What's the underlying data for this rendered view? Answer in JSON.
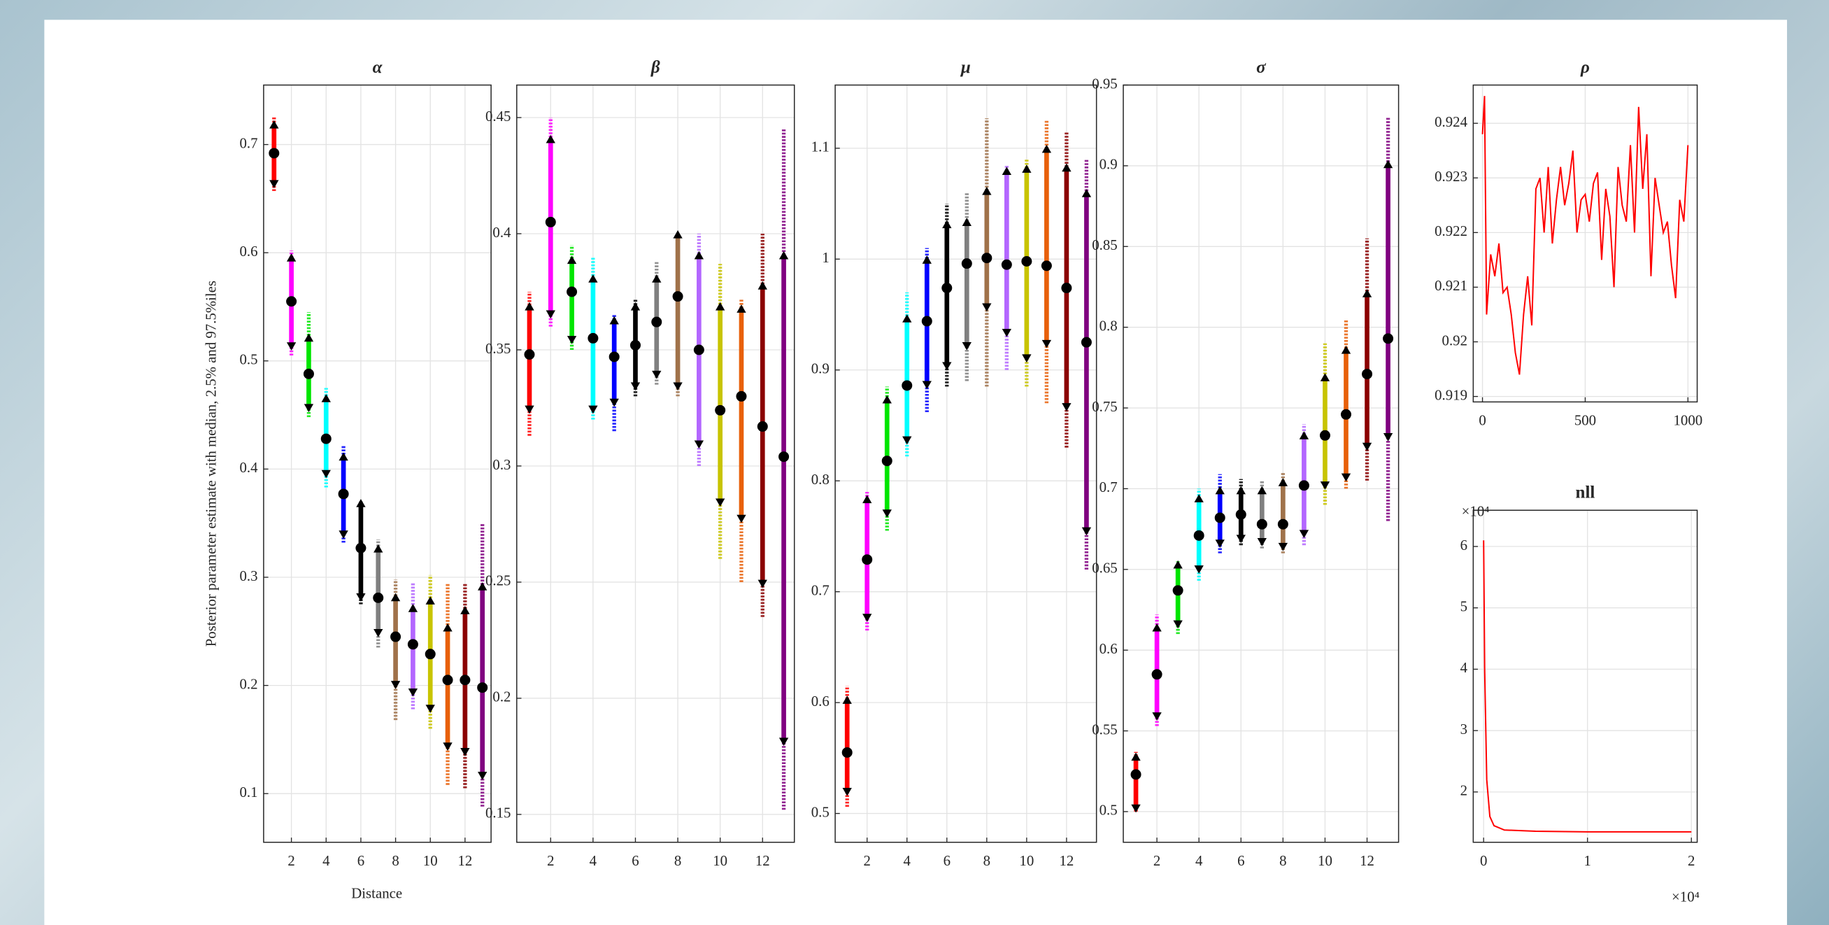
{
  "chart_data": [
    {
      "type": "interval",
      "title": "α",
      "ylabel": "Posterior parameter estimate with median, 2.5% and 97.5%iles",
      "xlabel": "Distance",
      "x": [
        1,
        2,
        3,
        4,
        5,
        6,
        7,
        8,
        9,
        10,
        11,
        12,
        13
      ],
      "xlim": [
        0.4,
        13.5
      ],
      "xticks": [
        2,
        4,
        6,
        8,
        10,
        12
      ],
      "ylim": [
        0.055,
        0.755
      ],
      "yticks": [
        0.1,
        0.2,
        0.3,
        0.4,
        0.5,
        0.6,
        0.7
      ],
      "grid": true,
      "colors": [
        "#ff0000",
        "#ff00ff",
        "#00e600",
        "#00ffff",
        "#0000ff",
        "#000000",
        "#808080",
        "#a0724a",
        "#b366ff",
        "#c8c400",
        "#e8600a",
        "#8b0000",
        "#800080"
      ],
      "median": [
        0.692,
        0.555,
        0.488,
        0.428,
        0.377,
        0.327,
        0.281,
        0.245,
        0.238,
        0.229,
        0.205,
        0.205,
        0.198
      ],
      "lower": [
        0.665,
        0.515,
        0.458,
        0.397,
        0.341,
        0.283,
        0.25,
        0.202,
        0.195,
        0.18,
        0.145,
        0.14,
        0.118
      ],
      "upper": [
        0.717,
        0.594,
        0.52,
        0.464,
        0.41,
        0.367,
        0.325,
        0.28,
        0.27,
        0.277,
        0.252,
        0.268,
        0.29
      ],
      "sample_min": [
        0.657,
        0.505,
        0.448,
        0.383,
        0.332,
        0.275,
        0.235,
        0.168,
        0.178,
        0.16,
        0.108,
        0.105,
        0.088
      ],
      "sample_max": [
        0.725,
        0.602,
        0.545,
        0.475,
        0.422,
        0.37,
        0.335,
        0.298,
        0.295,
        0.302,
        0.295,
        0.295,
        0.35
      ]
    },
    {
      "type": "interval",
      "title": "β",
      "x": [
        1,
        2,
        3,
        4,
        5,
        6,
        7,
        8,
        9,
        10,
        11,
        12,
        13
      ],
      "xlim": [
        0.4,
        13.5
      ],
      "xticks": [
        2,
        4,
        6,
        8,
        10,
        12
      ],
      "ylim": [
        0.138,
        0.464
      ],
      "yticks": [
        0.15,
        0.2,
        0.25,
        0.3,
        0.35,
        0.4,
        0.45
      ],
      "grid": true,
      "colors": [
        "#ff0000",
        "#ff00ff",
        "#00e600",
        "#00ffff",
        "#0000ff",
        "#000000",
        "#808080",
        "#a0724a",
        "#b366ff",
        "#c8c400",
        "#e8600a",
        "#8b0000",
        "#800080"
      ],
      "median": [
        0.348,
        0.405,
        0.375,
        0.355,
        0.347,
        0.352,
        0.362,
        0.373,
        0.35,
        0.324,
        0.33,
        0.317,
        0.304
      ],
      "lower": [
        0.325,
        0.366,
        0.355,
        0.325,
        0.328,
        0.335,
        0.34,
        0.335,
        0.31,
        0.285,
        0.278,
        0.25,
        0.182
      ],
      "upper": [
        0.368,
        0.44,
        0.388,
        0.38,
        0.362,
        0.368,
        0.38,
        0.399,
        0.39,
        0.368,
        0.367,
        0.377,
        0.39
      ],
      "sample_min": [
        0.313,
        0.36,
        0.35,
        0.32,
        0.315,
        0.33,
        0.335,
        0.33,
        0.3,
        0.26,
        0.25,
        0.235,
        0.152
      ],
      "sample_max": [
        0.375,
        0.45,
        0.395,
        0.39,
        0.365,
        0.372,
        0.388,
        0.4,
        0.4,
        0.387,
        0.372,
        0.4,
        0.445
      ]
    },
    {
      "type": "interval",
      "title": "μ",
      "x": [
        1,
        2,
        3,
        4,
        5,
        6,
        7,
        8,
        9,
        10,
        11,
        12,
        13
      ],
      "xlim": [
        0.4,
        13.5
      ],
      "xticks": [
        2,
        4,
        6,
        8,
        10,
        12
      ],
      "ylim": [
        0.474,
        1.157
      ],
      "yticks": [
        0.5,
        0.6,
        0.7,
        0.8,
        0.9,
        1,
        1.1
      ],
      "grid": true,
      "colors": [
        "#ff0000",
        "#ff00ff",
        "#00e600",
        "#00ffff",
        "#0000ff",
        "#000000",
        "#808080",
        "#a0724a",
        "#b366ff",
        "#c8c400",
        "#e8600a",
        "#8b0000",
        "#800080"
      ],
      "median": [
        0.555,
        0.729,
        0.818,
        0.886,
        0.944,
        0.974,
        0.996,
        1.001,
        0.995,
        0.998,
        0.994,
        0.974,
        0.925
      ],
      "lower": [
        0.521,
        0.678,
        0.772,
        0.838,
        0.888,
        0.905,
        0.923,
        0.958,
        0.935,
        0.912,
        0.925,
        0.868,
        0.756
      ],
      "upper": [
        0.601,
        0.782,
        0.872,
        0.945,
        0.998,
        1.03,
        1.032,
        1.06,
        1.078,
        1.08,
        1.098,
        1.081,
        1.058
      ],
      "sample_min": [
        0.506,
        0.665,
        0.755,
        0.822,
        0.862,
        0.885,
        0.89,
        0.885,
        0.9,
        0.885,
        0.87,
        0.83,
        0.72
      ],
      "sample_max": [
        0.615,
        0.79,
        0.885,
        0.97,
        1.01,
        1.05,
        1.06,
        1.127,
        1.085,
        1.09,
        1.125,
        1.115,
        1.09
      ]
    },
    {
      "type": "interval",
      "title": "σ",
      "x": [
        1,
        2,
        3,
        4,
        5,
        6,
        7,
        8,
        9,
        10,
        11,
        12,
        13
      ],
      "xlim": [
        0.4,
        13.5
      ],
      "xticks": [
        2,
        4,
        6,
        8,
        10,
        12
      ],
      "ylim": [
        0.481,
        0.95
      ],
      "yticks": [
        0.5,
        0.55,
        0.6,
        0.65,
        0.7,
        0.75,
        0.8,
        0.85,
        0.9,
        0.95
      ],
      "grid": true,
      "colors": [
        "#ff0000",
        "#ff00ff",
        "#00e600",
        "#00ffff",
        "#0000ff",
        "#000000",
        "#808080",
        "#a0724a",
        "#b366ff",
        "#c8c400",
        "#e8600a",
        "#8b0000",
        "#800080"
      ],
      "median": [
        0.523,
        0.585,
        0.637,
        0.671,
        0.682,
        0.684,
        0.678,
        0.678,
        0.702,
        0.733,
        0.746,
        0.771,
        0.793
      ],
      "lower": [
        0.503,
        0.56,
        0.617,
        0.651,
        0.667,
        0.67,
        0.668,
        0.665,
        0.673,
        0.703,
        0.708,
        0.727,
        0.733
      ],
      "upper": [
        0.533,
        0.613,
        0.652,
        0.693,
        0.698,
        0.698,
        0.698,
        0.703,
        0.732,
        0.768,
        0.785,
        0.82,
        0.9
      ],
      "sample_min": [
        0.5,
        0.553,
        0.61,
        0.643,
        0.66,
        0.665,
        0.663,
        0.66,
        0.665,
        0.69,
        0.7,
        0.705,
        0.68
      ],
      "sample_max": [
        0.537,
        0.622,
        0.655,
        0.7,
        0.709,
        0.706,
        0.705,
        0.71,
        0.74,
        0.79,
        0.805,
        0.855,
        0.93
      ]
    },
    {
      "type": "line",
      "title": "ρ",
      "color": "#ff0000",
      "x": [
        0,
        10,
        20,
        40,
        60,
        80,
        100,
        120,
        140,
        160,
        180,
        200,
        220,
        240,
        260,
        280,
        300,
        320,
        340,
        360,
        380,
        400,
        420,
        440,
        460,
        480,
        500,
        520,
        540,
        560,
        580,
        600,
        620,
        640,
        660,
        680,
        700,
        720,
        740,
        760,
        780,
        800,
        820,
        840,
        860,
        880,
        900,
        920,
        940,
        960,
        980,
        1000
      ],
      "values": [
        0.9238,
        0.9245,
        0.9205,
        0.9216,
        0.9212,
        0.9218,
        0.9209,
        0.921,
        0.9205,
        0.9198,
        0.9194,
        0.9205,
        0.9212,
        0.9203,
        0.9228,
        0.923,
        0.922,
        0.9232,
        0.9218,
        0.9226,
        0.9232,
        0.9225,
        0.9229,
        0.9235,
        0.922,
        0.9226,
        0.9227,
        0.9222,
        0.9229,
        0.9231,
        0.9215,
        0.9228,
        0.9223,
        0.921,
        0.9232,
        0.9225,
        0.9222,
        0.9236,
        0.922,
        0.9243,
        0.9228,
        0.9238,
        0.9212,
        0.923,
        0.9225,
        0.922,
        0.9222,
        0.9214,
        0.9208,
        0.9226,
        0.9222,
        0.9236
      ],
      "xlim": [
        -45,
        1045
      ],
      "xticks": [
        0,
        500,
        1000
      ],
      "ylim": [
        0.9189,
        0.9247
      ],
      "yticks": [
        0.919,
        0.92,
        0.921,
        0.922,
        0.923,
        0.924
      ],
      "grid": true
    },
    {
      "type": "line",
      "title": "nll",
      "color": "#ff0000",
      "x_multiplier": "×10⁴",
      "y_multiplier": "×10⁴",
      "x": [
        0,
        0.01,
        0.03,
        0.06,
        0.1,
        0.2,
        0.5,
        1,
        1.5,
        2
      ],
      "values": [
        6.1,
        4,
        2.2,
        1.6,
        1.45,
        1.38,
        1.36,
        1.35,
        1.35,
        1.35
      ],
      "xlim": [
        -0.1,
        2.056
      ],
      "xticks": [
        0,
        1,
        2
      ],
      "ylim": [
        1.18,
        6.59
      ],
      "yticks": [
        2,
        3,
        4,
        5,
        6
      ],
      "grid": true
    }
  ]
}
